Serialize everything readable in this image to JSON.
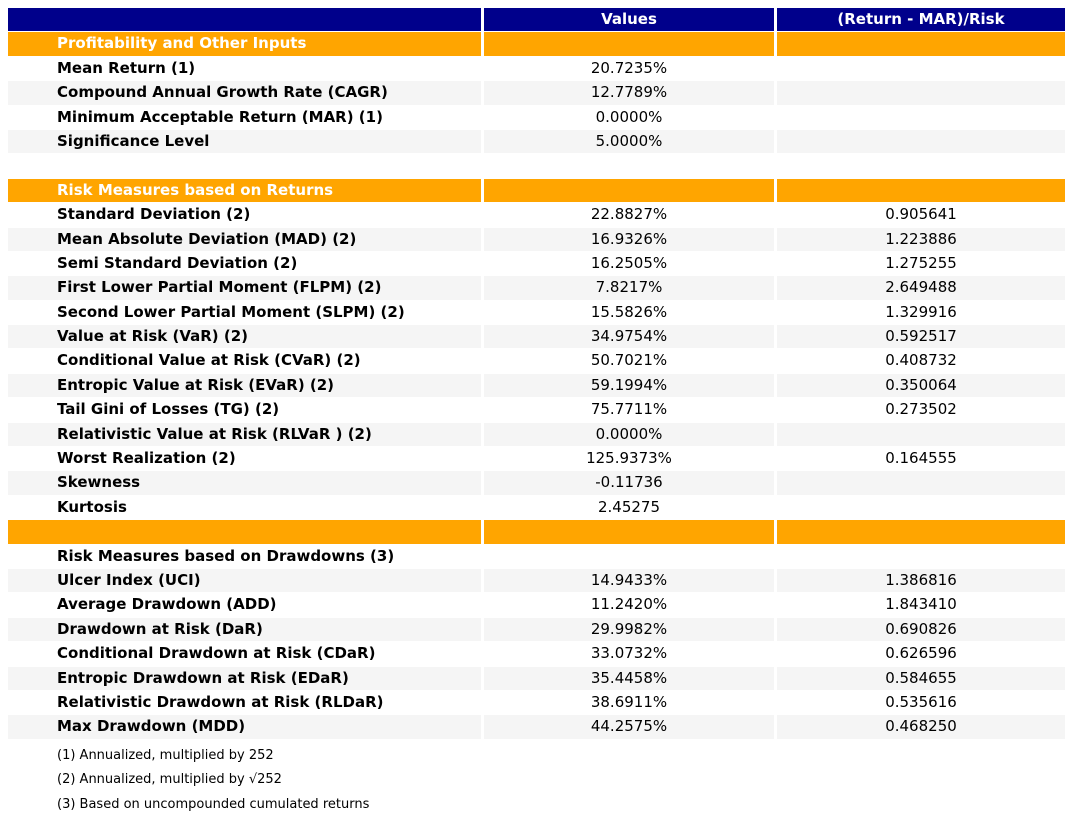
{
  "colors": {
    "header_bg": "#00008B",
    "header_text": "#FFFFFF",
    "section_bg": "#FFA500",
    "section_text": "#FFFFFF",
    "stripe_bg": "#F5F5F5",
    "row_bg": "#FFFFFF",
    "body_text": "#000000"
  },
  "chart_data": {
    "type": "table",
    "columns": [
      "",
      "Values",
      "(Return - MAR)/Risk"
    ],
    "rows": [
      {
        "label": "Profitability and Other Inputs",
        "value": "",
        "ratio": ""
      },
      {
        "label": "Mean Return (1)",
        "value": "20.7235%",
        "ratio": ""
      },
      {
        "label": "Compound Annual Growth Rate (CAGR)",
        "value": "12.7789%",
        "ratio": ""
      },
      {
        "label": "Minimum Acceptable Return (MAR) (1)",
        "value": "0.0000%",
        "ratio": ""
      },
      {
        "label": "Significance Level",
        "value": "5.0000%",
        "ratio": ""
      },
      {
        "label": "",
        "value": "",
        "ratio": ""
      },
      {
        "label": "Risk Measures based on Returns",
        "value": "",
        "ratio": ""
      },
      {
        "label": "Standard Deviation (2)",
        "value": "22.8827%",
        "ratio": "0.905641"
      },
      {
        "label": "Mean Absolute Deviation (MAD) (2)",
        "value": "16.9326%",
        "ratio": "1.223886"
      },
      {
        "label": "Semi Standard Deviation (2)",
        "value": "16.2505%",
        "ratio": "1.275255"
      },
      {
        "label": "First Lower Partial Moment (FLPM) (2)",
        "value": "7.8217%",
        "ratio": "2.649488"
      },
      {
        "label": "Second Lower Partial Moment (SLPM) (2)",
        "value": "15.5826%",
        "ratio": "1.329916"
      },
      {
        "label": "Value at Risk (VaR) (2)",
        "value": "34.9754%",
        "ratio": "0.592517"
      },
      {
        "label": "Conditional Value at Risk (CVaR) (2)",
        "value": "50.7021%",
        "ratio": "0.408732"
      },
      {
        "label": "Entropic Value at Risk (EVaR) (2)",
        "value": "59.1994%",
        "ratio": "0.350064"
      },
      {
        "label": "Tail Gini of Losses (TG) (2)",
        "value": "75.7711%",
        "ratio": "0.273502"
      },
      {
        "label": "Relativistic Value at Risk (RLVaR ) (2)",
        "value": "0.0000%",
        "ratio": ""
      },
      {
        "label": "Worst Realization (2)",
        "value": "125.9373%",
        "ratio": "0.164555"
      },
      {
        "label": "Skewness",
        "value": "-0.11736",
        "ratio": ""
      },
      {
        "label": "Kurtosis",
        "value": "2.45275",
        "ratio": ""
      },
      {
        "label": "",
        "value": "",
        "ratio": ""
      },
      {
        "label": "Risk Measures based on Drawdowns (3)",
        "value": "",
        "ratio": ""
      },
      {
        "label": "Ulcer Index (UCI)",
        "value": "14.9433%",
        "ratio": "1.386816"
      },
      {
        "label": "Average Drawdown (ADD)",
        "value": "11.2420%",
        "ratio": "1.843410"
      },
      {
        "label": "Drawdown at Risk (DaR)",
        "value": "29.9982%",
        "ratio": "0.690826"
      },
      {
        "label": "Conditional Drawdown at Risk (CDaR)",
        "value": "33.0732%",
        "ratio": "0.626596"
      },
      {
        "label": "Entropic Drawdown at Risk (EDaR)",
        "value": "35.4458%",
        "ratio": "0.584655"
      },
      {
        "label": "Relativistic Drawdown at Risk (RLDaR)",
        "value": "38.6911%",
        "ratio": "0.535616"
      },
      {
        "label": "Max Drawdown (MDD)",
        "value": "44.2575%",
        "ratio": "0.468250"
      }
    ],
    "footnotes": [
      "(1) Annualized, multiplied by 252",
      "(2) Annualized, multiplied by √252",
      "(3) Based on uncompounded cumulated returns"
    ]
  }
}
